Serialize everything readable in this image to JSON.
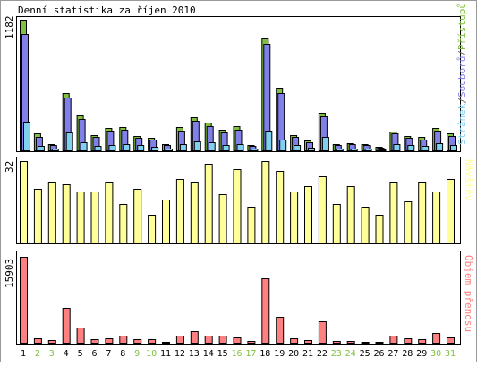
{
  "title": "Denní statistika za říjen 2010",
  "colors": {
    "hits": "#80c040",
    "files": "#8080e8",
    "pages": "#80d0f0",
    "visits": "#ffff99",
    "volume": "#ff8080",
    "weekend_label": "#80c040",
    "weekday_label": "#000000"
  },
  "chart_data": [
    {
      "type": "bar",
      "panel": "hits_files_pages",
      "max_label": "1182",
      "legend_parts": [
        "Stránek",
        "/",
        "Souborů",
        "/",
        "Přístupů"
      ],
      "categories": [
        "1",
        "2",
        "3",
        "4",
        "5",
        "6",
        "7",
        "8",
        "9",
        "10",
        "11",
        "12",
        "13",
        "14",
        "15",
        "16",
        "17",
        "18",
        "19",
        "20",
        "21",
        "22",
        "23",
        "24",
        "25",
        "26",
        "27",
        "28",
        "29",
        "30",
        "31"
      ],
      "series": [
        {
          "name": "Přístupů",
          "values": [
            1182,
            150,
            60,
            520,
            315,
            140,
            200,
            210,
            130,
            115,
            60,
            210,
            300,
            250,
            190,
            220,
            50,
            1010,
            570,
            140,
            90,
            340,
            55,
            65,
            55,
            30,
            170,
            130,
            120,
            200,
            150
          ]
        },
        {
          "name": "Souborů",
          "values": [
            1050,
            120,
            50,
            480,
            280,
            120,
            180,
            185,
            110,
            100,
            50,
            180,
            270,
            220,
            160,
            190,
            40,
            960,
            520,
            120,
            75,
            310,
            45,
            55,
            45,
            25,
            150,
            110,
            100,
            175,
            130
          ]
        },
        {
          "name": "Stránek",
          "values": [
            260,
            40,
            15,
            160,
            70,
            40,
            45,
            55,
            45,
            35,
            20,
            60,
            80,
            70,
            50,
            55,
            20,
            180,
            95,
            45,
            25,
            120,
            15,
            20,
            15,
            10,
            55,
            50,
            40,
            65,
            45
          ]
        }
      ]
    },
    {
      "type": "bar",
      "panel": "visits",
      "max_label": "32",
      "legend": "Návštěv",
      "categories": [
        "1",
        "2",
        "3",
        "4",
        "5",
        "6",
        "7",
        "8",
        "9",
        "10",
        "11",
        "12",
        "13",
        "14",
        "15",
        "16",
        "17",
        "18",
        "19",
        "20",
        "21",
        "22",
        "23",
        "24",
        "25",
        "26",
        "27",
        "28",
        "29",
        "30",
        "31"
      ],
      "series": [
        {
          "name": "Návštěv",
          "values": [
            32,
            21,
            24,
            23,
            20,
            20,
            24,
            15,
            21,
            11,
            17,
            25,
            24,
            31,
            19,
            29,
            14,
            32,
            28,
            20,
            22,
            26,
            15,
            22,
            14,
            11,
            24,
            16,
            24,
            20,
            25
          ]
        }
      ]
    },
    {
      "type": "bar",
      "panel": "volume",
      "max_label": "15903",
      "legend": "Objem přenosu",
      "categories": [
        "1",
        "2",
        "3",
        "4",
        "5",
        "6",
        "7",
        "8",
        "9",
        "10",
        "11",
        "12",
        "13",
        "14",
        "15",
        "16",
        "17",
        "18",
        "19",
        "20",
        "21",
        "22",
        "23",
        "24",
        "25",
        "26",
        "27",
        "28",
        "29",
        "30",
        "31"
      ],
      "series": [
        {
          "name": "Objem přenosu",
          "values": [
            15903,
            800,
            500,
            6500,
            2800,
            700,
            900,
            1300,
            700,
            600,
            200,
            1400,
            2200,
            1300,
            1300,
            1000,
            250,
            12000,
            4800,
            900,
            500,
            3900,
            250,
            250,
            200,
            150,
            1300,
            800,
            700,
            1800,
            1000
          ]
        }
      ]
    }
  ],
  "x_labels": [
    {
      "text": "1",
      "weekend": false
    },
    {
      "text": "2",
      "weekend": true
    },
    {
      "text": "3",
      "weekend": true
    },
    {
      "text": "4",
      "weekend": false
    },
    {
      "text": "5",
      "weekend": false
    },
    {
      "text": "6",
      "weekend": false
    },
    {
      "text": "7",
      "weekend": false
    },
    {
      "text": "8",
      "weekend": false
    },
    {
      "text": "9",
      "weekend": true
    },
    {
      "text": "10",
      "weekend": true
    },
    {
      "text": "11",
      "weekend": false
    },
    {
      "text": "12",
      "weekend": false
    },
    {
      "text": "13",
      "weekend": false
    },
    {
      "text": "14",
      "weekend": false
    },
    {
      "text": "15",
      "weekend": false
    },
    {
      "text": "16",
      "weekend": true
    },
    {
      "text": "17",
      "weekend": true
    },
    {
      "text": "18",
      "weekend": false
    },
    {
      "text": "19",
      "weekend": false
    },
    {
      "text": "20",
      "weekend": false
    },
    {
      "text": "21",
      "weekend": false
    },
    {
      "text": "22",
      "weekend": false
    },
    {
      "text": "23",
      "weekend": true
    },
    {
      "text": "24",
      "weekend": true
    },
    {
      "text": "25",
      "weekend": false
    },
    {
      "text": "26",
      "weekend": false
    },
    {
      "text": "27",
      "weekend": false
    },
    {
      "text": "28",
      "weekend": false
    },
    {
      "text": "29",
      "weekend": false
    },
    {
      "text": "30",
      "weekend": true
    },
    {
      "text": "31",
      "weekend": true
    }
  ]
}
